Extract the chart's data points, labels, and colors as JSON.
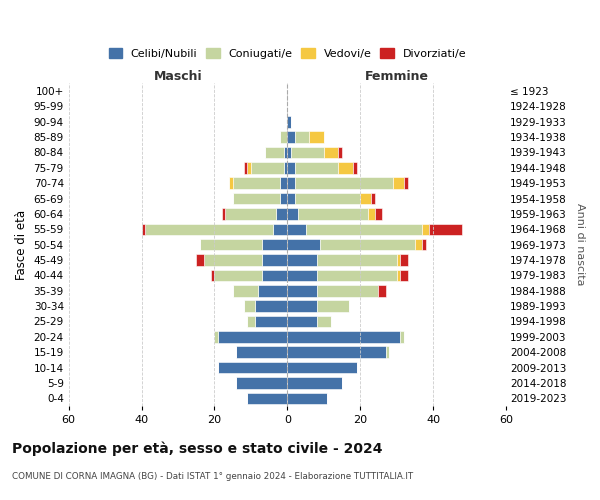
{
  "age_groups": [
    "100+",
    "95-99",
    "90-94",
    "85-89",
    "80-84",
    "75-79",
    "70-74",
    "65-69",
    "60-64",
    "55-59",
    "50-54",
    "45-49",
    "40-44",
    "35-39",
    "30-34",
    "25-29",
    "20-24",
    "15-19",
    "10-14",
    "5-9",
    "0-4"
  ],
  "birth_years": [
    "≤ 1923",
    "1924-1928",
    "1929-1933",
    "1934-1938",
    "1939-1943",
    "1944-1948",
    "1949-1953",
    "1954-1958",
    "1959-1963",
    "1964-1968",
    "1969-1973",
    "1974-1978",
    "1979-1983",
    "1984-1988",
    "1989-1993",
    "1994-1998",
    "1999-2003",
    "2004-2008",
    "2009-2013",
    "2014-2018",
    "2019-2023"
  ],
  "colors": {
    "celibi": "#4472a8",
    "coniugati": "#c5d5a0",
    "vedovi": "#f5c842",
    "divorziati": "#cc2222"
  },
  "maschi": {
    "celibi": [
      0,
      0,
      0,
      0,
      1,
      1,
      2,
      2,
      3,
      4,
      7,
      7,
      7,
      8,
      9,
      9,
      19,
      14,
      19,
      14,
      11
    ],
    "coniugati": [
      0,
      0,
      0,
      2,
      5,
      9,
      13,
      13,
      14,
      35,
      17,
      16,
      13,
      7,
      3,
      2,
      1,
      0,
      0,
      0,
      0
    ],
    "vedovi": [
      0,
      0,
      0,
      0,
      0,
      1,
      1,
      0,
      0,
      0,
      0,
      0,
      0,
      0,
      0,
      0,
      0,
      0,
      0,
      0,
      0
    ],
    "divorziati": [
      0,
      0,
      0,
      0,
      0,
      1,
      0,
      0,
      1,
      1,
      0,
      2,
      1,
      0,
      0,
      0,
      0,
      0,
      0,
      0,
      0
    ]
  },
  "femmine": {
    "celibi": [
      0,
      0,
      1,
      2,
      1,
      2,
      2,
      2,
      3,
      5,
      9,
      8,
      8,
      8,
      8,
      8,
      31,
      27,
      19,
      15,
      11
    ],
    "coniugati": [
      0,
      0,
      0,
      4,
      9,
      12,
      27,
      18,
      19,
      32,
      26,
      22,
      22,
      17,
      9,
      4,
      1,
      1,
      0,
      0,
      0
    ],
    "vedovi": [
      0,
      0,
      0,
      4,
      4,
      4,
      3,
      3,
      2,
      2,
      2,
      1,
      1,
      0,
      0,
      0,
      0,
      0,
      0,
      0,
      0
    ],
    "divorziati": [
      0,
      0,
      0,
      0,
      1,
      1,
      1,
      1,
      2,
      9,
      1,
      2,
      2,
      2,
      0,
      0,
      0,
      0,
      0,
      0,
      0
    ]
  },
  "xlim": 60,
  "title": "Popolazione per età, sesso e stato civile - 2024",
  "subtitle": "COMUNE DI CORNA IMAGNA (BG) - Dati ISTAT 1° gennaio 2024 - Elaborazione TUTTITALIA.IT",
  "xlabel_left": "Maschi",
  "xlabel_right": "Femmine",
  "ylabel": "Fasce di età",
  "ylabel_right": "Anni di nascita",
  "legend_labels": [
    "Celibi/Nubili",
    "Coniugati/e",
    "Vedovi/e",
    "Divorziati/e"
  ],
  "bg_color": "#ffffff",
  "grid_color": "#cccccc"
}
